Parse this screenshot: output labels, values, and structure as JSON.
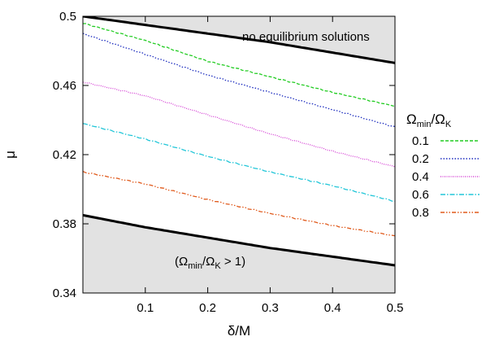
{
  "chart_data": {
    "type": "line",
    "xlabel": "δ/M",
    "ylabel": "μ",
    "xlim": [
      0.0,
      0.5
    ],
    "ylim": [
      0.34,
      0.5
    ],
    "x_ticks": [
      0.1,
      0.2,
      0.3,
      0.4,
      0.5
    ],
    "x_tick_labels": [
      "0.1",
      "0.2",
      "0.3",
      "0.4",
      "0.5"
    ],
    "y_ticks": [
      0.34,
      0.38,
      0.42,
      0.46,
      0.5
    ],
    "y_tick_labels": [
      "0.34",
      "0.38",
      "0.42",
      "0.46",
      "0.5"
    ],
    "grid": false,
    "legend": {
      "placement": "right",
      "title_main": "Ω",
      "title_sub1": "min",
      "title_mid": "/Ω",
      "title_sub2": "K"
    },
    "x": [
      0.0,
      0.1,
      0.2,
      0.3,
      0.4,
      0.5
    ],
    "series": [
      {
        "name": "0.1",
        "color": "#22cc22",
        "dash": "dashed",
        "values": [
          0.496,
          0.486,
          0.474,
          0.465,
          0.456,
          0.448
        ]
      },
      {
        "name": "0.2",
        "color": "#1f2fbf",
        "dash": "dotted",
        "values": [
          0.49,
          0.478,
          0.466,
          0.456,
          0.446,
          0.436
        ]
      },
      {
        "name": "0.4",
        "color": "#d43fd4",
        "dash": "fine-dotted",
        "values": [
          0.462,
          0.454,
          0.443,
          0.432,
          0.422,
          0.413
        ]
      },
      {
        "name": "0.6",
        "color": "#22c6d8",
        "dash": "dash-dot",
        "values": [
          0.438,
          0.429,
          0.419,
          0.41,
          0.402,
          0.393
        ]
      },
      {
        "name": "0.8",
        "color": "#e05a1c",
        "dash": "dash-dot-dot",
        "values": [
          0.41,
          0.403,
          0.394,
          0.386,
          0.379,
          0.373
        ]
      }
    ],
    "upper_boundary": {
      "color": "#000000",
      "values": [
        0.5,
        0.495,
        0.49,
        0.485,
        0.479,
        0.473
      ]
    },
    "lower_boundary": {
      "color": "#000000",
      "values": [
        0.385,
        0.378,
        0.372,
        0.366,
        0.361,
        0.356
      ]
    },
    "shade_color": "#e2e2e2",
    "annotations": {
      "upper_region": "no equilibrium solutions",
      "lower_region_open": "(Ω",
      "lower_region_sub1": "min",
      "lower_region_mid": "/Ω",
      "lower_region_sub2": "K",
      "lower_region_close": " > 1)"
    }
  }
}
